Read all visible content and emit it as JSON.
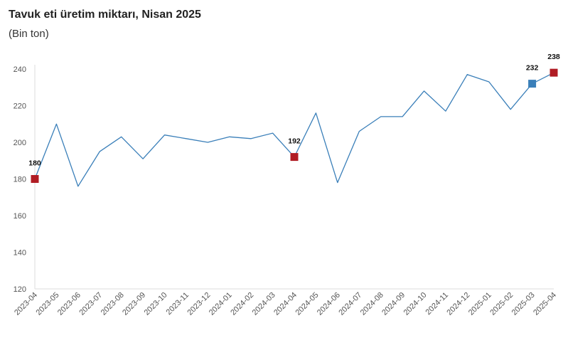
{
  "header": {
    "title": "Tavuk eti üretim miktarı, Nisan 2025",
    "subtitle": "(Bin ton)"
  },
  "colors": {
    "line": "#3a7fb9",
    "highlight_red": "#b01c24",
    "highlight_blue": "#3a7fb9",
    "axis": "#dddddd"
  },
  "chart_data": {
    "type": "line",
    "title": "Tavuk eti üretim miktarı, Nisan 2025",
    "subtitle": "(Bin ton)",
    "xlabel": "",
    "ylabel": "",
    "ylim": [
      120,
      240
    ],
    "yticks": [
      120,
      140,
      160,
      180,
      200,
      220,
      240
    ],
    "grid": false,
    "categories": [
      "2023-04",
      "2023-05",
      "2023-06",
      "2023-07",
      "2023-08",
      "2023-09",
      "2023-10",
      "2023-11",
      "2023-12",
      "2024-01",
      "2024-02",
      "2024-03",
      "2024-04",
      "2024-05",
      "2024-06",
      "2024-07",
      "2024-08",
      "2024-09",
      "2024-10",
      "2024-11",
      "2024-12",
      "2025-01",
      "2025-02",
      "2025-03",
      "2025-04"
    ],
    "series": [
      {
        "values": [
          180,
          210,
          176,
          195,
          203,
          191,
          204,
          202,
          200,
          203,
          202,
          205,
          192,
          216,
          178,
          206,
          214,
          214,
          228,
          217,
          237,
          233,
          218,
          232,
          238
        ]
      }
    ],
    "highlights": [
      {
        "category": "2023-04",
        "value": 180,
        "label": "180",
        "color": "red"
      },
      {
        "category": "2024-04",
        "value": 192,
        "label": "192",
        "color": "red"
      },
      {
        "category": "2025-03",
        "value": 232,
        "label": "232",
        "color": "blue"
      },
      {
        "category": "2025-04",
        "value": 238,
        "label": "238",
        "color": "red"
      }
    ]
  }
}
